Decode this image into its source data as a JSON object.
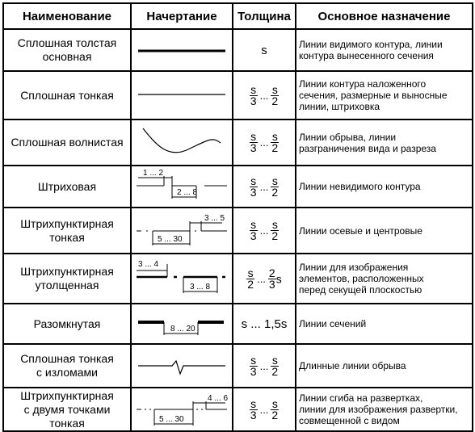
{
  "headers": {
    "name": "Наименование",
    "drawing": "Начертание",
    "thickness": "Толщина",
    "purpose": "Основное назначение"
  },
  "rows": [
    {
      "name": [
        "Сплошная толстая",
        "основная"
      ],
      "thickness": {
        "plain": "s"
      },
      "purpose": [
        "Линии видимого контура, линии",
        "контура вынесенного сечения"
      ]
    },
    {
      "name": [
        "Сплошная тонкая"
      ],
      "thickness": {
        "n1": "s",
        "d1": "3",
        "dots": "...",
        "n2": "s",
        "d2": "2"
      },
      "purpose": [
        "Линии контура наложенного",
        "сечения, размерные и выносные",
        "линии, штриховка"
      ]
    },
    {
      "name": [
        "Сплошная волнистая"
      ],
      "thickness": {
        "n1": "s",
        "d1": "3",
        "dots": "...",
        "n2": "s",
        "d2": "2"
      },
      "purpose": [
        "Линии обрыва, линии",
        "разграничения вида и разреза"
      ]
    },
    {
      "name": [
        "Штриховая"
      ],
      "thickness": {
        "n1": "s",
        "d1": "3",
        "dots": "...",
        "n2": "s",
        "d2": "2"
      },
      "purpose": [
        "Линии невидимого контура"
      ],
      "dims": [
        "1 ... 2",
        "2 ... 8"
      ]
    },
    {
      "name": [
        "Штрихпунктирная",
        "тонкая"
      ],
      "thickness": {
        "n1": "s",
        "d1": "3",
        "dots": "...",
        "n2": "s",
        "d2": "2"
      },
      "purpose": [
        "Линии осевые и центровые"
      ],
      "dims": [
        "3 ... 5",
        "5 ... 30"
      ]
    },
    {
      "name": [
        "Штрихпунктирная",
        "утолщенная"
      ],
      "thickness": {
        "n1": "s",
        "d1": "2",
        "dots": "...",
        "n2": "2",
        "d2": "3",
        "suffix": "s"
      },
      "purpose": [
        "Линии для изображения",
        "элементов, расположенных",
        "перед секущей плоскостью"
      ],
      "dims": [
        "3 ... 4",
        "3 ... 8"
      ]
    },
    {
      "name": [
        "Разомкнутая"
      ],
      "thickness": {
        "plain": "s ... 1,5s"
      },
      "purpose": [
        "Линии сечений"
      ],
      "dims": [
        "8 ... 20"
      ]
    },
    {
      "name": [
        "Сплошная тонкая",
        "с изломами"
      ],
      "thickness": {
        "n1": "s",
        "d1": "3",
        "dots": "...",
        "n2": "s",
        "d2": "2"
      },
      "purpose": [
        "Длинные линии обрыва"
      ]
    },
    {
      "name": [
        "Штрихпунктирная",
        "с двумя точками",
        "тонкая"
      ],
      "thickness": {
        "n1": "s",
        "d1": "3",
        "dots": "...",
        "n2": "s",
        "d2": "2"
      },
      "purpose": [
        "Линии сгиба на развертках,",
        "линии для изображения развертки,",
        "совмещенной с видом"
      ],
      "dims": [
        "4 ... 6",
        "5 ... 30"
      ]
    }
  ]
}
